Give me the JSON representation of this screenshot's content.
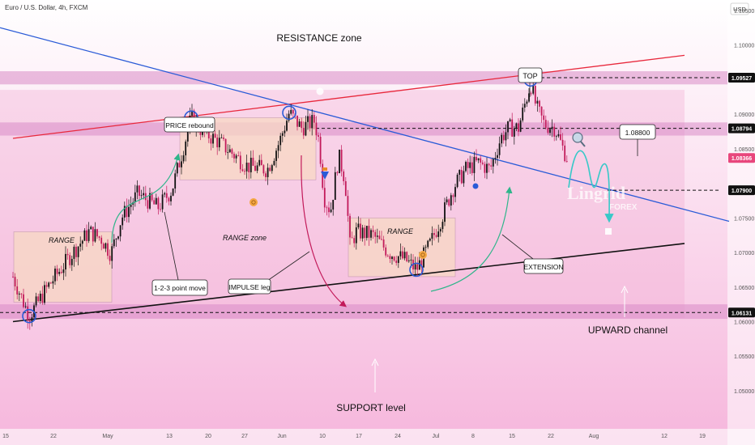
{
  "header": {
    "symbol_title": "Euro / U.S. Dollar, 4h, FXCM",
    "currency": "USD"
  },
  "colors": {
    "background_top": "#ffffff",
    "background_bottom": "#f6b6dc",
    "bull_candle": "#111111",
    "bear_candle": "#c21a5a",
    "resistance_line": "#e8283c",
    "descending_line": "#2a5bd7",
    "channel_line": "#111111",
    "zone_band": "#d98ac6",
    "range_box": "#f8d9c4",
    "projection_path": "#38c8c8",
    "circle_marker": "#2a5bd7",
    "price_tag_dark": "#111111",
    "price_tag_current": "#e8467c"
  },
  "chart_data": {
    "type": "candlestick",
    "title": "Euro / U.S. Dollar, 4h, FXCM",
    "ylabel": "USD",
    "ylim": [
      1.0445,
      1.1065
    ],
    "y_ticks": [
      {
        "label": "1.10500",
        "value": 1.105
      },
      {
        "label": "1.10000",
        "value": 1.1
      },
      {
        "label": "1.09000",
        "value": 1.09
      },
      {
        "label": "1.08500",
        "value": 1.085
      },
      {
        "label": "1.07500",
        "value": 1.075
      },
      {
        "label": "1.07000",
        "value": 1.07
      },
      {
        "label": "1.06500",
        "value": 1.065
      },
      {
        "label": "1.06000",
        "value": 1.06
      },
      {
        "label": "1.05500",
        "value": 1.055
      },
      {
        "label": "1.05000",
        "value": 1.05
      }
    ],
    "x_ticks": [
      "15",
      "22",
      "May",
      "13",
      "20",
      "27",
      "Jun",
      "10",
      "17",
      "24",
      "Jul",
      "8",
      "15",
      "22",
      "Aug",
      "12",
      "19"
    ],
    "price_tags": [
      {
        "label": "1.09527",
        "value": 1.09527,
        "style": "dark"
      },
      {
        "label": "1.08794",
        "value": 1.08794,
        "style": "dark"
      },
      {
        "label": "1.08366",
        "value": 1.08366,
        "style": "current"
      },
      {
        "label": "1.07900",
        "value": 1.079,
        "style": "dark"
      },
      {
        "label": "1.06131",
        "value": 1.06131,
        "style": "dark"
      }
    ],
    "zones": [
      {
        "name": "resistance",
        "from": 1.0943,
        "to": 1.0962
      },
      {
        "name": "mid",
        "from": 1.0869,
        "to": 1.0888
      },
      {
        "name": "support",
        "from": 1.0604,
        "to": 1.0625
      }
    ],
    "path_anchors": [
      [
        16,
        1.0665
      ],
      [
        36,
        1.0608
      ],
      [
        60,
        1.0652
      ],
      [
        90,
        1.07
      ],
      [
        110,
        1.073
      ],
      [
        125,
        1.072
      ],
      [
        137,
        1.0698
      ],
      [
        150,
        1.075
      ],
      [
        170,
        1.0785
      ],
      [
        195,
        1.0765
      ],
      [
        212,
        1.079
      ],
      [
        226,
        1.085
      ],
      [
        236,
        1.0895
      ],
      [
        250,
        1.0875
      ],
      [
        270,
        1.086
      ],
      [
        290,
        1.084
      ],
      [
        305,
        1.0825
      ],
      [
        330,
        1.082
      ],
      [
        345,
        1.086
      ],
      [
        357,
        1.0902
      ],
      [
        372,
        1.088
      ],
      [
        388,
        1.089
      ],
      [
        394,
        1.086
      ],
      [
        400,
        1.078
      ],
      [
        408,
        1.076
      ],
      [
        418,
        1.084
      ],
      [
        426,
        1.0805
      ],
      [
        432,
        1.071
      ],
      [
        440,
        1.073
      ],
      [
        460,
        1.0725
      ],
      [
        480,
        1.07
      ],
      [
        500,
        1.069
      ],
      [
        514,
        1.0675
      ],
      [
        530,
        1.071
      ],
      [
        545,
        1.075
      ],
      [
        560,
        1.0795
      ],
      [
        575,
        1.082
      ],
      [
        590,
        1.083
      ],
      [
        605,
        1.082
      ],
      [
        618,
        1.0865
      ],
      [
        628,
        1.088
      ],
      [
        640,
        1.088
      ],
      [
        655,
        1.0945
      ],
      [
        662,
        1.091
      ],
      [
        672,
        1.0885
      ],
      [
        685,
        1.088
      ],
      [
        695,
        1.085
      ],
      [
        700,
        1.0837
      ]
    ],
    "lines": [
      {
        "name": "resistance-trendline",
        "from": [
          16,
          1.0865
        ],
        "to": [
          845,
          1.0985
        ]
      },
      {
        "name": "descending-trendline",
        "from": [
          0,
          1.1025
        ],
        "to": [
          900,
          1.0745
        ]
      },
      {
        "name": "upward-channel-support",
        "from": [
          16,
          1.06
        ],
        "to": [
          845,
          1.0713
        ]
      },
      {
        "name": "level-1.08794",
        "from": [
          390,
          1.08794
        ],
        "to": [
          890,
          1.08794
        ]
      },
      {
        "name": "level-1.07900",
        "from": [
          750,
          1.079
        ],
        "to": [
          890,
          1.079
        ]
      },
      {
        "name": "level-1.09527",
        "from": [
          640,
          1.09527
        ],
        "to": [
          890,
          1.09527
        ]
      },
      {
        "name": "level-1.06131",
        "from": [
          0,
          1.06131
        ],
        "to": [
          890,
          1.06131
        ]
      }
    ],
    "range_boxes": [
      {
        "name": "range-box-1",
        "x0": 17,
        "x1": 138,
        "y_top": 1.073,
        "y_bottom": 1.0628
      },
      {
        "name": "range-box-2",
        "x0": 222,
        "x1": 390,
        "y_top": 1.0895,
        "y_bottom": 1.0805
      },
      {
        "name": "range-box-3",
        "x0": 430,
        "x1": 562,
        "y_top": 1.075,
        "y_bottom": 1.0665
      }
    ],
    "circle_markers": [
      {
        "name": "low-marker",
        "x": 36,
        "y": 1.0608
      },
      {
        "name": "rebound-marker",
        "x": 236,
        "y": 1.0895
      },
      {
        "name": "jun-high-marker",
        "x": 357,
        "y": 1.0902
      },
      {
        "name": "jul-low-marker",
        "x": 514,
        "y": 1.0675
      },
      {
        "name": "top-marker",
        "x": 655,
        "y": 1.095
      }
    ],
    "annotations": {
      "resistance_zone": "RESISTANCE zone",
      "top": "TOP",
      "price_rebound": "PRICE rebound",
      "range_1": "RANGE",
      "range_zone": "RANGE zone",
      "range_2": "RANGE",
      "point_move": "1-2-3 point move",
      "impulse_leg": "IMPULSE leg",
      "extension": "EXTENSION",
      "upward_channel": "UPWARD channel",
      "support_level": "SUPPORT level",
      "target_price": "1.08800"
    },
    "watermark": {
      "brand": "Lingrid",
      "sub": "FOREX"
    }
  }
}
